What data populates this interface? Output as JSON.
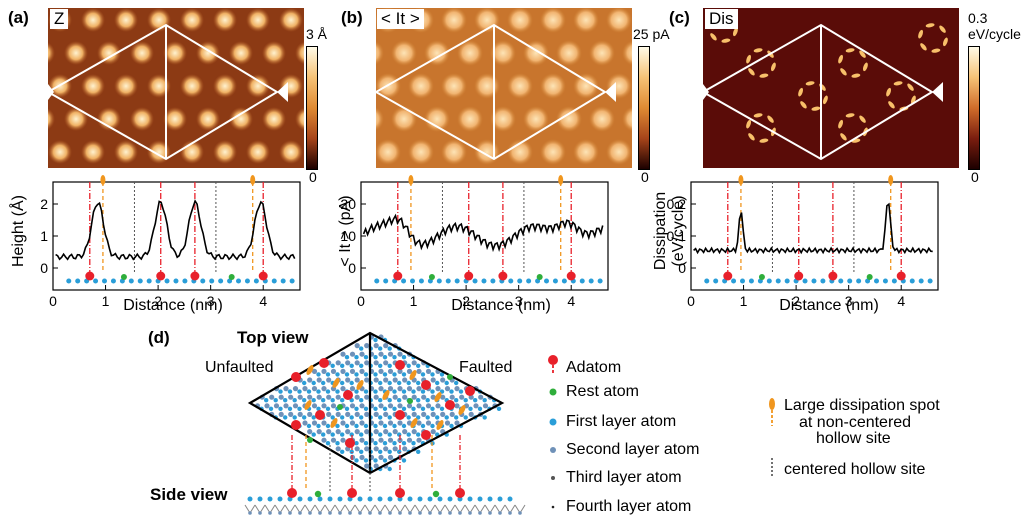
{
  "panels": {
    "a": {
      "label": "(a)",
      "image_tag": "Z",
      "scale_top": "3 Å",
      "scale_bottom": "0",
      "ylabel": "Height (Å)",
      "xlabel": "Distance (nm)",
      "yticks": [
        "2",
        "1",
        "0"
      ],
      "xticks": [
        "0",
        "1",
        "2",
        "3",
        "4"
      ]
    },
    "b": {
      "label": "(b)",
      "image_tag": "< It >",
      "scale_top": "25 pA",
      "scale_bottom": "0",
      "ylabel": "< It > (pA)",
      "xlabel": "Distance (nm)",
      "yticks": [
        "20",
        "10",
        "0"
      ],
      "xticks": [
        "0",
        "1",
        "2",
        "3",
        "4"
      ]
    },
    "c": {
      "label": "(c)",
      "image_tag": "Dis",
      "scale_top_1": "0.3",
      "scale_top_2": "eV/cycle",
      "scale_bottom": "0",
      "ylabel_1": "Dissipation",
      "ylabel_2": "(eV/cycle)",
      "xlabel": "Distance (nm)",
      "yticks": [
        "0.2",
        "0.1",
        "0"
      ],
      "xticks": [
        "0",
        "1",
        "2",
        "3",
        "4"
      ]
    },
    "d": {
      "label": "(d)",
      "top_view": "Top view",
      "side_view": "Side view",
      "unfaulted": "Unfaulted",
      "faulted": "Faulted"
    }
  },
  "legend": {
    "adatom": "Adatom",
    "rest_atom": "Rest atom",
    "first_layer": "First layer atom",
    "second_layer": "Second layer atom",
    "third_layer": "Third layer atom",
    "fourth_layer": "Fourth layer atom",
    "large_dissipation_1": "Large dissipation spot",
    "large_dissipation_2": "at non-centered",
    "large_dissipation_3": "hollow site",
    "centered_hollow": "centered hollow site"
  },
  "colors": {
    "adatom": "#e8202a",
    "rest_atom": "#2fae3b",
    "first_layer": "#2a9ed8",
    "second_layer": "#6f91b8",
    "third_layer": "#555555",
    "fourth_layer": "#222222",
    "dissipation_spot": "#f0961e",
    "scan_line": "#000000"
  }
}
